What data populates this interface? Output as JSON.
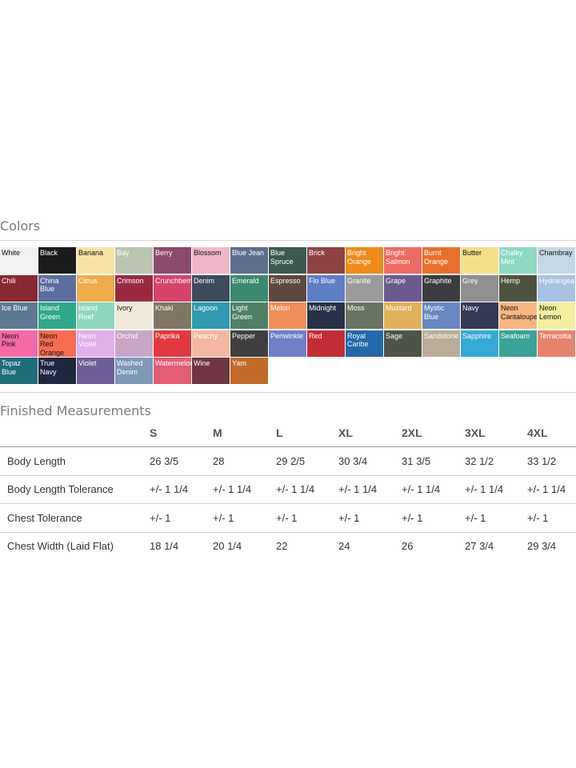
{
  "colors_section": {
    "title": "Colors",
    "swatches": [
      {
        "label": "White",
        "color": "#f1f1f3",
        "text": "dark"
      },
      {
        "label": "Black",
        "color": "#1b1b1b",
        "text": "light"
      },
      {
        "label": "Banana",
        "color": "#f7e2a6",
        "text": "dark"
      },
      {
        "label": "Bay",
        "color": "#bcc4b2",
        "text": "light"
      },
      {
        "label": "Berry",
        "color": "#8c4a6d",
        "text": "light"
      },
      {
        "label": "Blossom",
        "color": "#efb6c8",
        "text": "dark"
      },
      {
        "label": "Blue Jean",
        "color": "#5e6e8c",
        "text": "light"
      },
      {
        "label": "Blue\nSpruce",
        "color": "#3c5a52",
        "text": "light"
      },
      {
        "label": "Brick",
        "color": "#8e4244",
        "text": "light"
      },
      {
        "label": "Bright\nOrange",
        "color": "#f08a1c",
        "text": "light"
      },
      {
        "label": "Bright\nSalmon",
        "color": "#ee6c63",
        "text": "light"
      },
      {
        "label": "Burnt\nOrange",
        "color": "#ea6f2c",
        "text": "light"
      },
      {
        "label": "Butter",
        "color": "#f8de8a",
        "text": "dark"
      },
      {
        "label": "Chalky\nMint",
        "color": "#8ed8c4",
        "text": "light"
      },
      {
        "label": "Chambray",
        "color": "#c5d8e6",
        "text": "dark"
      },
      {
        "label": "Chili",
        "color": "#882833",
        "text": "light"
      },
      {
        "label": "China\nBlue",
        "color": "#5b6e9e",
        "text": "light"
      },
      {
        "label": "Citrus",
        "color": "#efac4a",
        "text": "light"
      },
      {
        "label": "Crimson",
        "color": "#9c2a3e",
        "text": "light"
      },
      {
        "label": "Crunchberry",
        "color": "#d6446c",
        "text": "light"
      },
      {
        "label": "Denim",
        "color": "#3e4a5e",
        "text": "light"
      },
      {
        "label": "Emerald",
        "color": "#3b8a70",
        "text": "light"
      },
      {
        "label": "Espresso",
        "color": "#5e4840",
        "text": "light"
      },
      {
        "label": "Flo Blue",
        "color": "#5f7ec4",
        "text": "light"
      },
      {
        "label": "Granite",
        "color": "#9b9b9b",
        "text": "light"
      },
      {
        "label": "Grape",
        "color": "#6c5a8e",
        "text": "light"
      },
      {
        "label": "Graphite",
        "color": "#3b3b40",
        "text": "light"
      },
      {
        "label": "Grey",
        "color": "#8f8f8f",
        "text": "light"
      },
      {
        "label": "Hemp",
        "color": "#4f5440",
        "text": "light"
      },
      {
        "label": "Hydrangea",
        "color": "#a9c2e4",
        "text": "light"
      },
      {
        "label": "Ice Blue",
        "color": "#5d7a92",
        "text": "light"
      },
      {
        "label": "Island\nGreen",
        "color": "#2fa889",
        "text": "light"
      },
      {
        "label": "Island\nReef",
        "color": "#8fd6bf",
        "text": "light"
      },
      {
        "label": "Ivory",
        "color": "#f1eadb",
        "text": "dark"
      },
      {
        "label": "Khaki",
        "color": "#807664",
        "text": "light"
      },
      {
        "label": "Lagoon",
        "color": "#2f9ab0",
        "text": "light"
      },
      {
        "label": "Light\nGreen",
        "color": "#4f8066",
        "text": "light"
      },
      {
        "label": "Melon",
        "color": "#f28e58",
        "text": "light"
      },
      {
        "label": "Midnight",
        "color": "#273148",
        "text": "light"
      },
      {
        "label": "Moss",
        "color": "#6a7464",
        "text": "light"
      },
      {
        "label": "Mustard",
        "color": "#e0b05a",
        "text": "light"
      },
      {
        "label": "Mystic\nBlue",
        "color": "#6788c2",
        "text": "light"
      },
      {
        "label": "Navy",
        "color": "#343a52",
        "text": "light"
      },
      {
        "label": "Neon\nCantaloupe",
        "color": "#f9b681",
        "text": "dark"
      },
      {
        "label": "Neon\nLemon",
        "color": "#f3eea0",
        "text": "dark"
      },
      {
        "label": "Neon\nPink",
        "color": "#f46aa6",
        "text": "dark"
      },
      {
        "label": "Neon\nRed\nOrange",
        "color": "#f66d53",
        "text": "dark"
      },
      {
        "label": "Neon\nViolet",
        "color": "#e3aeec",
        "text": "light"
      },
      {
        "label": "Orchid",
        "color": "#c7a6c7",
        "text": "light"
      },
      {
        "label": "Paprika",
        "color": "#e1393f",
        "text": "light"
      },
      {
        "label": "Peachy",
        "color": "#f4b8a0",
        "text": "light"
      },
      {
        "label": "Pepper",
        "color": "#3f3f3f",
        "text": "light"
      },
      {
        "label": "Periwinkle",
        "color": "#6f7fc8",
        "text": "light"
      },
      {
        "label": "Red",
        "color": "#c32d34",
        "text": "light"
      },
      {
        "label": "Royal\nCaribe",
        "color": "#2368a8",
        "text": "light"
      },
      {
        "label": "Sage",
        "color": "#4c5547",
        "text": "light"
      },
      {
        "label": "Sandstone",
        "color": "#b9ad98",
        "text": "light"
      },
      {
        "label": "Sapphire",
        "color": "#36a8d6",
        "text": "light"
      },
      {
        "label": "Seafoam",
        "color": "#3aa296",
        "text": "light"
      },
      {
        "label": "Terracotta",
        "color": "#e8836b",
        "text": "light"
      },
      {
        "label": "Topaz\nBlue",
        "color": "#1f6c7a",
        "text": "light"
      },
      {
        "label": "True\nNavy",
        "color": "#1e2640",
        "text": "light"
      },
      {
        "label": "Violet",
        "color": "#6f5e96",
        "text": "light"
      },
      {
        "label": "Washed\nDenim",
        "color": "#7f97b9",
        "text": "light"
      },
      {
        "label": "Watermelon",
        "color": "#e25c74",
        "text": "light"
      },
      {
        "label": "Wine",
        "color": "#6e3642",
        "text": "light"
      },
      {
        "label": "Yam",
        "color": "#c26a2a",
        "text": "light"
      }
    ]
  },
  "measurements_section": {
    "title": "Finished Measurements",
    "sizes": [
      "S",
      "M",
      "L",
      "XL",
      "2XL",
      "3XL",
      "4XL"
    ],
    "rows": [
      {
        "label": "Body Length",
        "values": [
          "26 3/5",
          "28",
          "29 2/5",
          "30 3/4",
          "31 3/5",
          "32 1/2",
          "33 1/2"
        ]
      },
      {
        "label": "Body Length Tolerance",
        "values": [
          "+/- 1 1/4",
          "+/- 1 1/4",
          "+/- 1 1/4",
          "+/- 1 1/4",
          "+/- 1 1/4",
          "+/- 1 1/4",
          "+/- 1 1/4"
        ]
      },
      {
        "label": "Chest Tolerance",
        "values": [
          "+/- 1",
          "+/- 1",
          "+/- 1",
          "+/- 1",
          "+/- 1",
          "+/- 1",
          "+/- 1"
        ]
      },
      {
        "label": "Chest Width (Laid Flat)",
        "values": [
          "18 1/4",
          "20 1/4",
          "22",
          "24",
          "26",
          "27 3/4",
          "29 3/4"
        ]
      }
    ]
  }
}
